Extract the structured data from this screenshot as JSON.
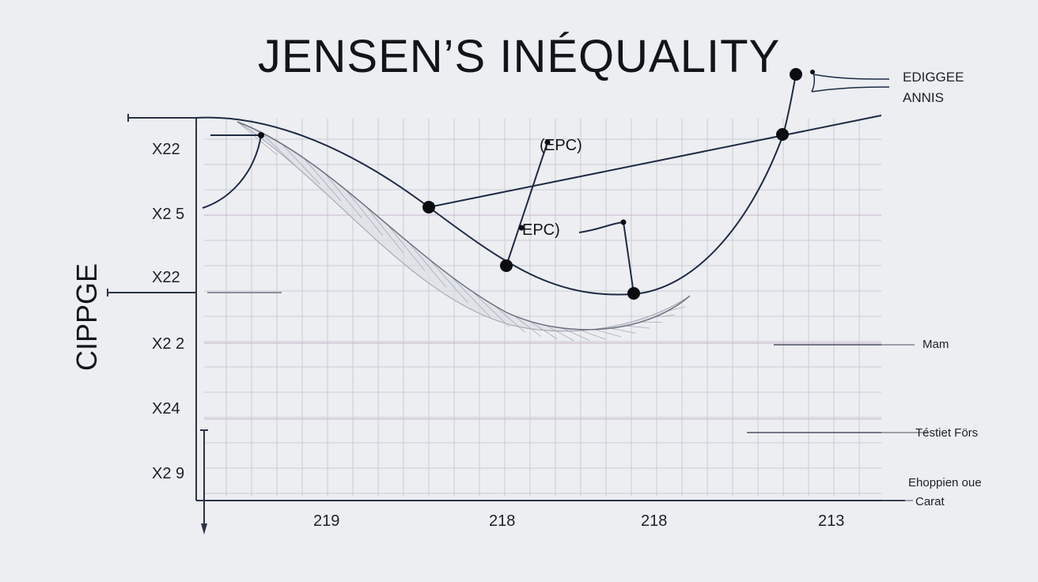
{
  "title": "JENSEN’S INÉQUALITY",
  "y_axis_label": "CIPPGE",
  "y_ticks": [
    "X22",
    "X2 5",
    "X22",
    "X2 2",
    "X24",
    "X2 9"
  ],
  "x_ticks": [
    "219",
    "218",
    "218",
    "213"
  ],
  "annotations": {
    "epc_upper": "EPC)",
    "epc_lower": "EPC)",
    "edge_top": "EDIGGEE",
    "edge_bottom": "ANNIS",
    "mam": "Mam",
    "testiet": "Téstiet Förs",
    "ehop": "Ehoppien oue",
    "carat": "Carat"
  },
  "colors": {
    "background": "#eceef1",
    "curve": "#1d2b45",
    "grid": "#c9ccd4",
    "grid_accent": "#c9b6cc",
    "band": "#9aa0ac"
  }
}
